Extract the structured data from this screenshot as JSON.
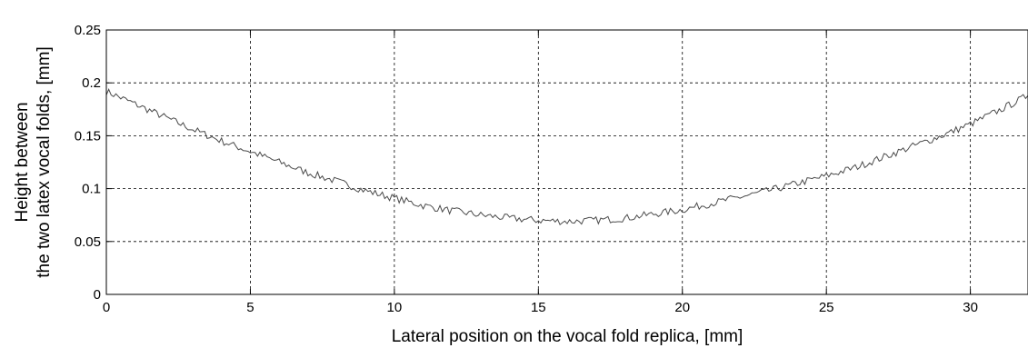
{
  "chart_data": {
    "type": "line",
    "title": "",
    "xlabel": "Lateral position on the vocal fold replica, [mm]",
    "ylabel_lines": [
      "Height between",
      "the two latex vocal folds, [mm]"
    ],
    "xlim": [
      0,
      32
    ],
    "ylim": [
      0,
      0.25
    ],
    "xticks": [
      0,
      5,
      10,
      15,
      20,
      25,
      30
    ],
    "xtick_labels": [
      "0",
      "5",
      "10",
      "15",
      "20",
      "25",
      "30"
    ],
    "yticks": [
      0,
      0.05,
      0.1,
      0.15,
      0.2,
      0.25
    ],
    "ytick_labels": [
      "0",
      "0.05",
      "0.1",
      "0.15",
      "0.2",
      "0.25"
    ],
    "grid": true,
    "legend": "none",
    "line_color": "#4a4a4a",
    "series": [
      {
        "x": [
          0,
          1,
          2,
          3,
          4,
          5,
          6,
          7,
          8,
          9,
          10,
          11,
          12,
          13,
          14,
          15,
          16,
          17,
          18,
          19,
          20,
          21,
          22,
          23,
          24,
          25,
          26,
          27,
          28,
          29,
          30,
          31,
          32
        ],
        "values": [
          0.192,
          0.18,
          0.168,
          0.156,
          0.145,
          0.135,
          0.125,
          0.115,
          0.107,
          0.098,
          0.091,
          0.084,
          0.079,
          0.075,
          0.072,
          0.07,
          0.069,
          0.07,
          0.072,
          0.076,
          0.08,
          0.086,
          0.092,
          0.098,
          0.105,
          0.112,
          0.12,
          0.13,
          0.14,
          0.15,
          0.161,
          0.174,
          0.188
        ]
      }
    ]
  }
}
